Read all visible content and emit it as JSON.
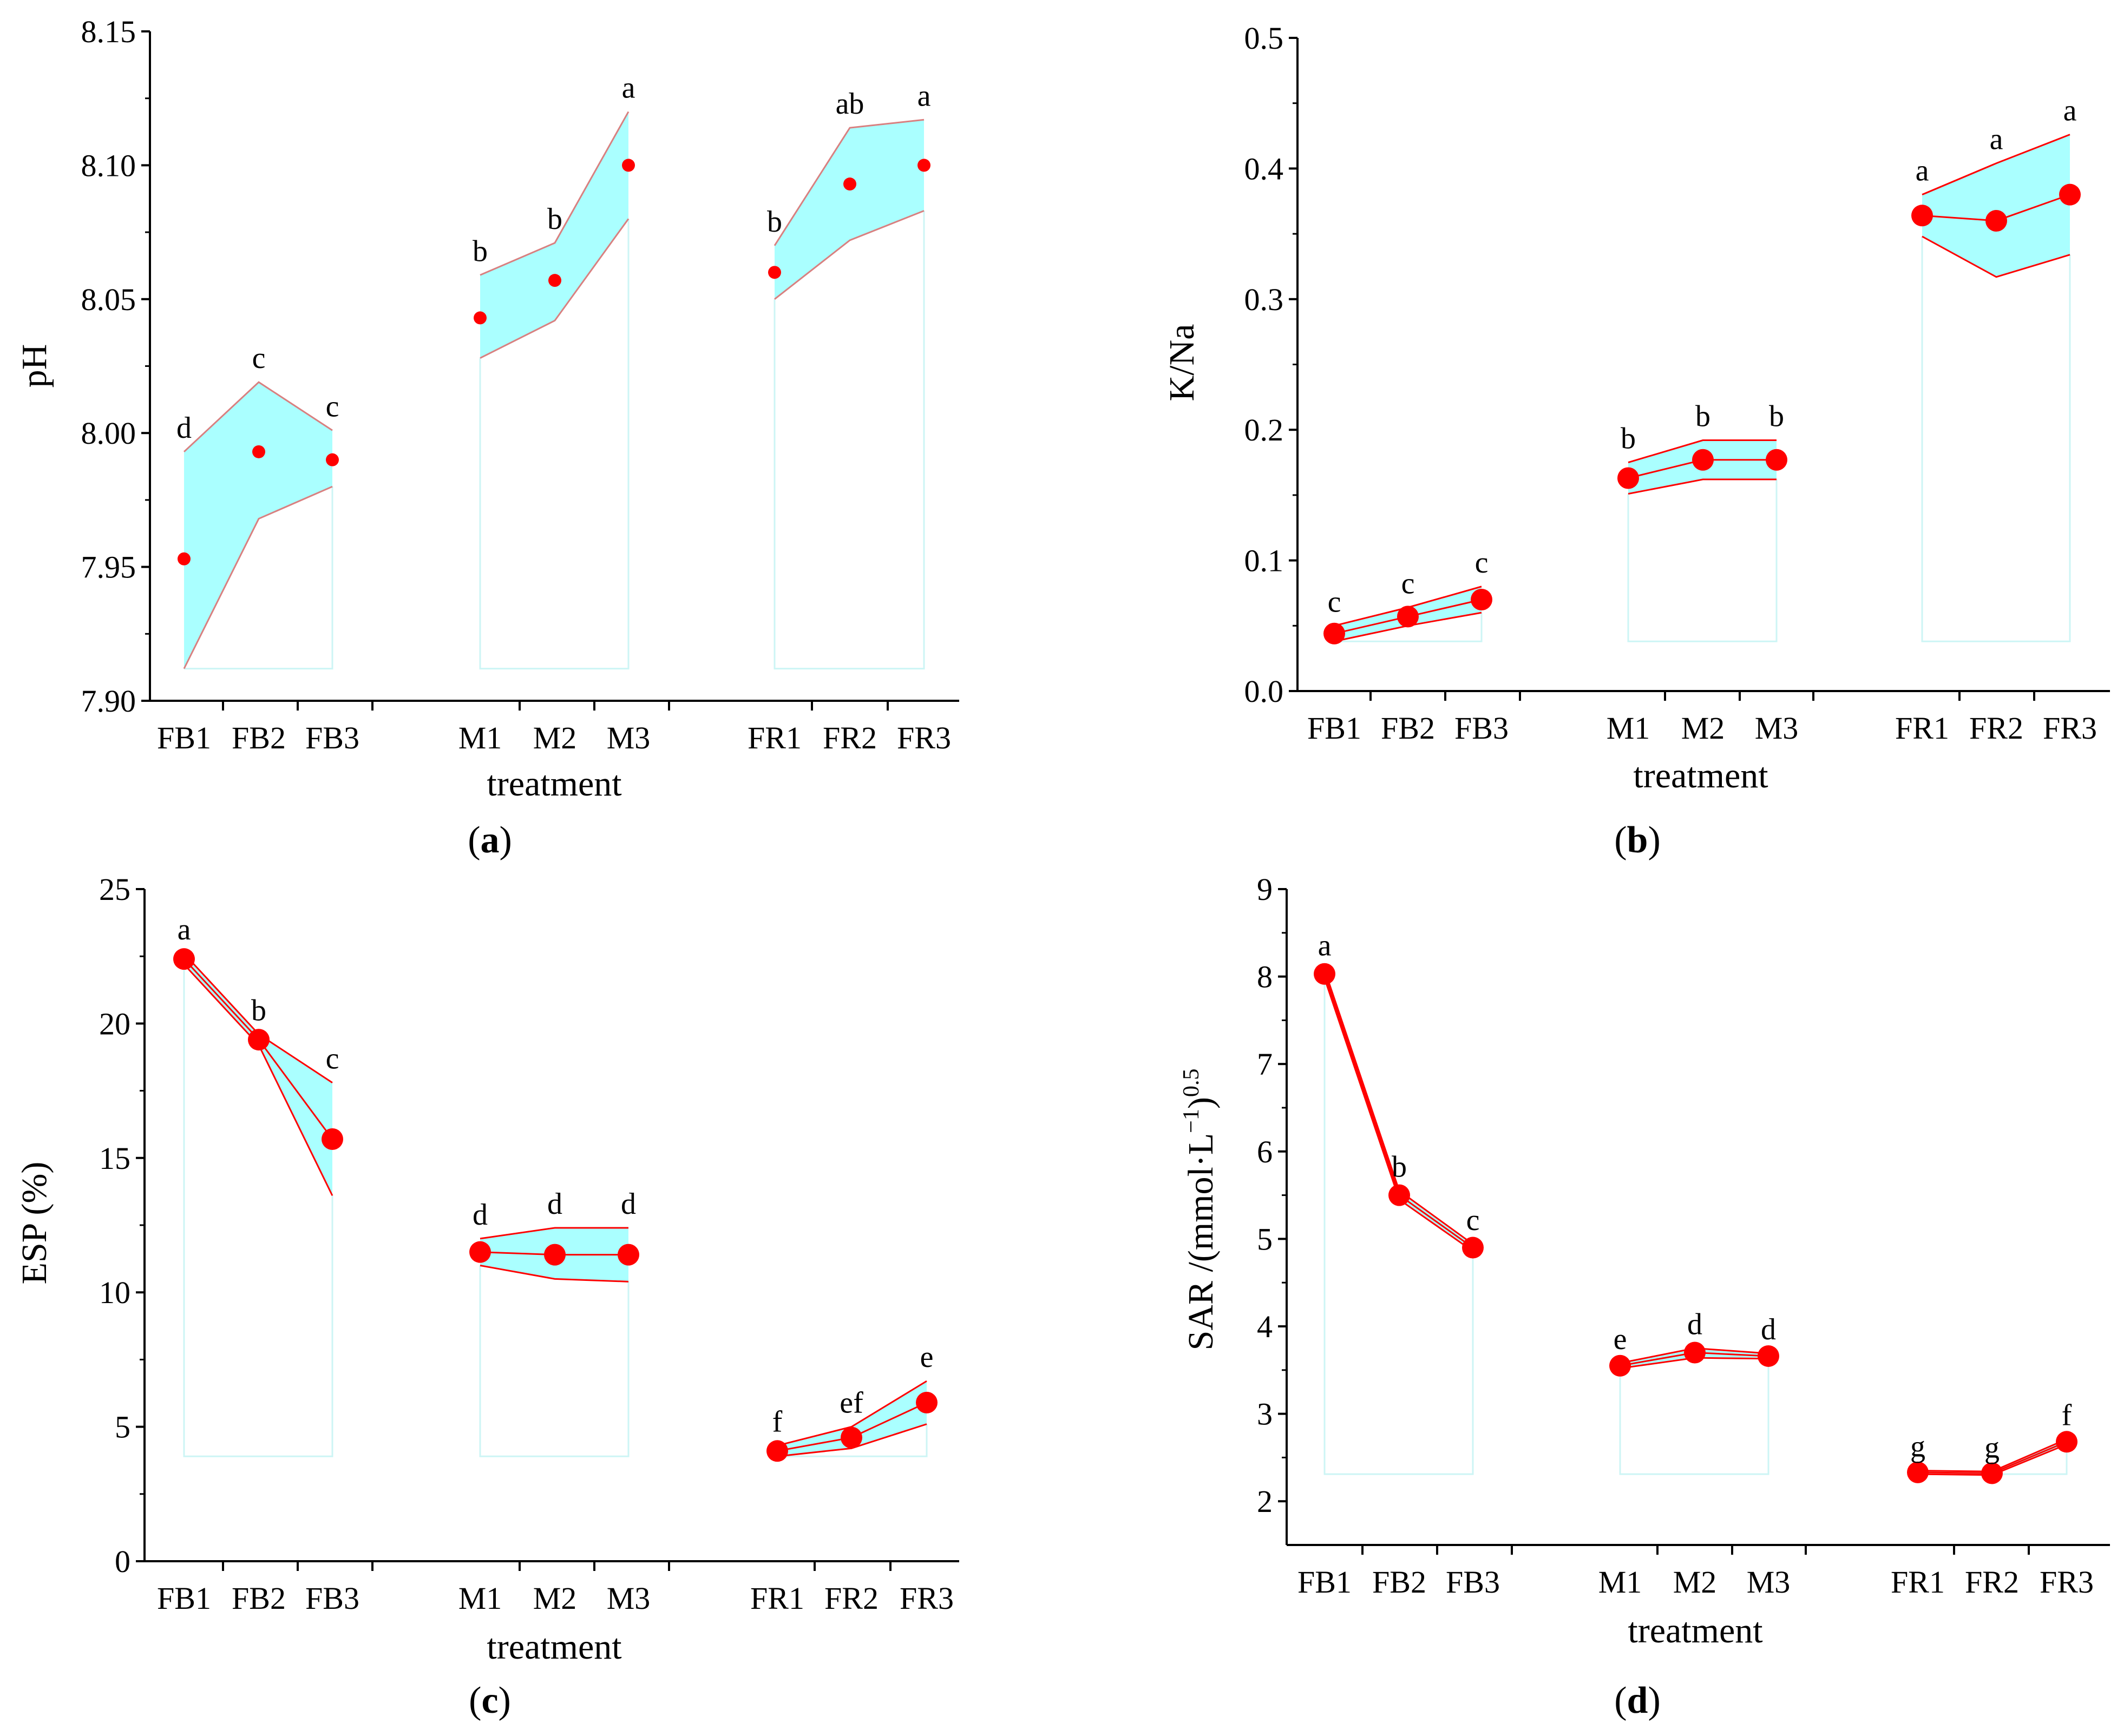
{
  "chart_data": [
    {
      "id": "a",
      "type": "scatter",
      "panel_label": "a",
      "xlabel": "treatment",
      "ylabel": "pH",
      "ylim": [
        7.9,
        8.15
      ],
      "yticks": [
        "7.90",
        "7.95",
        "8.00",
        "8.05",
        "8.10",
        "8.15"
      ],
      "categories": [
        "FB1",
        "FB2",
        "FB3",
        "M1",
        "M2",
        "M3",
        "FR1",
        "FR2",
        "FR3"
      ],
      "groups": [
        {
          "points": [
            {
              "x": "FB1",
              "y": 7.953,
              "upper": 7.993,
              "lower": 7.912,
              "letter": "d"
            },
            {
              "x": "FB2",
              "y": 7.993,
              "upper": 8.019,
              "lower": 7.968,
              "letter": "c"
            },
            {
              "x": "FB3",
              "y": 7.99,
              "upper": 8.001,
              "lower": 7.98,
              "letter": "c"
            }
          ]
        },
        {
          "points": [
            {
              "x": "M1",
              "y": 8.043,
              "upper": 8.059,
              "lower": 8.028,
              "letter": "b"
            },
            {
              "x": "M2",
              "y": 8.057,
              "upper": 8.071,
              "lower": 8.042,
              "letter": "b"
            },
            {
              "x": "M3",
              "y": 8.1,
              "upper": 8.12,
              "lower": 8.08,
              "letter": "a"
            }
          ]
        },
        {
          "points": [
            {
              "x": "FR1",
              "y": 8.06,
              "upper": 8.07,
              "lower": 8.05,
              "letter": "b"
            },
            {
              "x": "FR2",
              "y": 8.093,
              "upper": 8.114,
              "lower": 8.072,
              "letter": "ab"
            },
            {
              "x": "FR3",
              "y": 8.1,
              "upper": 8.117,
              "lower": 8.083,
              "letter": "a"
            }
          ]
        }
      ],
      "base": 7.912,
      "band_color": "#aaffff",
      "edge_color": "#d98080",
      "point_color": "#ff0000"
    },
    {
      "id": "b",
      "type": "scatter",
      "panel_label": "b",
      "xlabel": "treatment",
      "ylabel": "K/Na",
      "ylim": [
        0.0,
        0.5
      ],
      "yticks": [
        "0.0",
        "0.1",
        "0.2",
        "0.3",
        "0.4",
        "0.5"
      ],
      "categories": [
        "FB1",
        "FB2",
        "FB3",
        "M1",
        "M2",
        "M3",
        "FR1",
        "FR2",
        "FR3"
      ],
      "groups": [
        {
          "points": [
            {
              "x": "FB1",
              "y": 0.044,
              "upper": 0.05,
              "lower": 0.038,
              "letter": "c"
            },
            {
              "x": "FB2",
              "y": 0.057,
              "upper": 0.064,
              "lower": 0.05,
              "letter": "c"
            },
            {
              "x": "FB3",
              "y": 0.07,
              "upper": 0.08,
              "lower": 0.06,
              "letter": "c"
            }
          ]
        },
        {
          "points": [
            {
              "x": "M1",
              "y": 0.163,
              "upper": 0.175,
              "lower": 0.151,
              "letter": "b"
            },
            {
              "x": "M2",
              "y": 0.177,
              "upper": 0.192,
              "lower": 0.162,
              "letter": "b"
            },
            {
              "x": "M3",
              "y": 0.177,
              "upper": 0.192,
              "lower": 0.162,
              "letter": "b"
            }
          ]
        },
        {
          "points": [
            {
              "x": "FR1",
              "y": 0.364,
              "upper": 0.38,
              "lower": 0.348,
              "letter": "a"
            },
            {
              "x": "FR2",
              "y": 0.36,
              "upper": 0.404,
              "lower": 0.317,
              "letter": "a"
            },
            {
              "x": "FR3",
              "y": 0.38,
              "upper": 0.426,
              "lower": 0.334,
              "letter": "a"
            }
          ]
        }
      ],
      "base": 0.038,
      "band_color": "#aaffff",
      "edge_color": "#ff0000",
      "point_color": "#ff0000"
    },
    {
      "id": "c",
      "type": "scatter",
      "panel_label": "c",
      "xlabel": "treatment",
      "ylabel": "ESP (%)",
      "ylim": [
        0,
        25
      ],
      "yticks": [
        "0",
        "5",
        "10",
        "15",
        "20",
        "25"
      ],
      "categories": [
        "FB1",
        "FB2",
        "FB3",
        "M1",
        "M2",
        "M3",
        "FR1",
        "FR2",
        "FR3"
      ],
      "groups": [
        {
          "points": [
            {
              "x": "FB1",
              "y": 22.4,
              "upper": 22.6,
              "lower": 22.2,
              "letter": "a"
            },
            {
              "x": "FB2",
              "y": 19.4,
              "upper": 19.6,
              "lower": 19.2,
              "letter": "b"
            },
            {
              "x": "FB3",
              "y": 15.7,
              "upper": 17.8,
              "lower": 13.6,
              "letter": "c"
            }
          ]
        },
        {
          "points": [
            {
              "x": "M1",
              "y": 11.5,
              "upper": 12.0,
              "lower": 11.0,
              "letter": "d"
            },
            {
              "x": "M2",
              "y": 11.4,
              "upper": 12.4,
              "lower": 10.5,
              "letter": "d"
            },
            {
              "x": "M3",
              "y": 11.4,
              "upper": 12.4,
              "lower": 10.4,
              "letter": "d"
            }
          ]
        },
        {
          "points": [
            {
              "x": "FR1",
              "y": 4.1,
              "upper": 4.3,
              "lower": 3.9,
              "letter": "f"
            },
            {
              "x": "FR2",
              "y": 4.6,
              "upper": 5.0,
              "lower": 4.2,
              "letter": "ef"
            },
            {
              "x": "FR3",
              "y": 5.9,
              "upper": 6.7,
              "lower": 5.1,
              "letter": "e"
            }
          ]
        }
      ],
      "base": 3.9,
      "band_color": "#aaffff",
      "edge_color": "#ff0000",
      "point_color": "#ff0000"
    },
    {
      "id": "d",
      "type": "scatter",
      "panel_label": "d",
      "xlabel": "treatment",
      "ylabel_main": "SAR /(mmol·L",
      "ylabel_exp1": "−1",
      "ylabel_mid": ")",
      "ylabel_exp2": "0.5",
      "ylim": [
        1.5,
        9
      ],
      "yticks": [
        "2",
        "3",
        "4",
        "5",
        "6",
        "7",
        "8",
        "9"
      ],
      "categories": [
        "FB1",
        "FB2",
        "FB3",
        "M1",
        "M2",
        "M3",
        "FR1",
        "FR2",
        "FR3"
      ],
      "groups": [
        {
          "points": [
            {
              "x": "FB1",
              "y": 8.03,
              "upper": 8.08,
              "lower": 7.98,
              "letter": "a"
            },
            {
              "x": "FB2",
              "y": 5.5,
              "upper": 5.55,
              "lower": 5.45,
              "letter": "b"
            },
            {
              "x": "FB3",
              "y": 4.9,
              "upper": 4.94,
              "lower": 4.86,
              "letter": "c"
            }
          ]
        },
        {
          "points": [
            {
              "x": "M1",
              "y": 3.55,
              "upper": 3.58,
              "lower": 3.52,
              "letter": "e"
            },
            {
              "x": "M2",
              "y": 3.7,
              "upper": 3.75,
              "lower": 3.64,
              "letter": "d"
            },
            {
              "x": "M3",
              "y": 3.66,
              "upper": 3.69,
              "lower": 3.63,
              "letter": "d"
            }
          ]
        },
        {
          "points": [
            {
              "x": "FR1",
              "y": 2.33,
              "upper": 2.35,
              "lower": 2.31,
              "letter": "g"
            },
            {
              "x": "FR2",
              "y": 2.32,
              "upper": 2.34,
              "lower": 2.3,
              "letter": "g"
            },
            {
              "x": "FR3",
              "y": 2.68,
              "upper": 2.71,
              "lower": 2.65,
              "letter": "f"
            }
          ]
        }
      ],
      "base": 2.31,
      "band_color": "#aaffff",
      "edge_color": "#ff0000",
      "point_color": "#ff0000"
    }
  ]
}
